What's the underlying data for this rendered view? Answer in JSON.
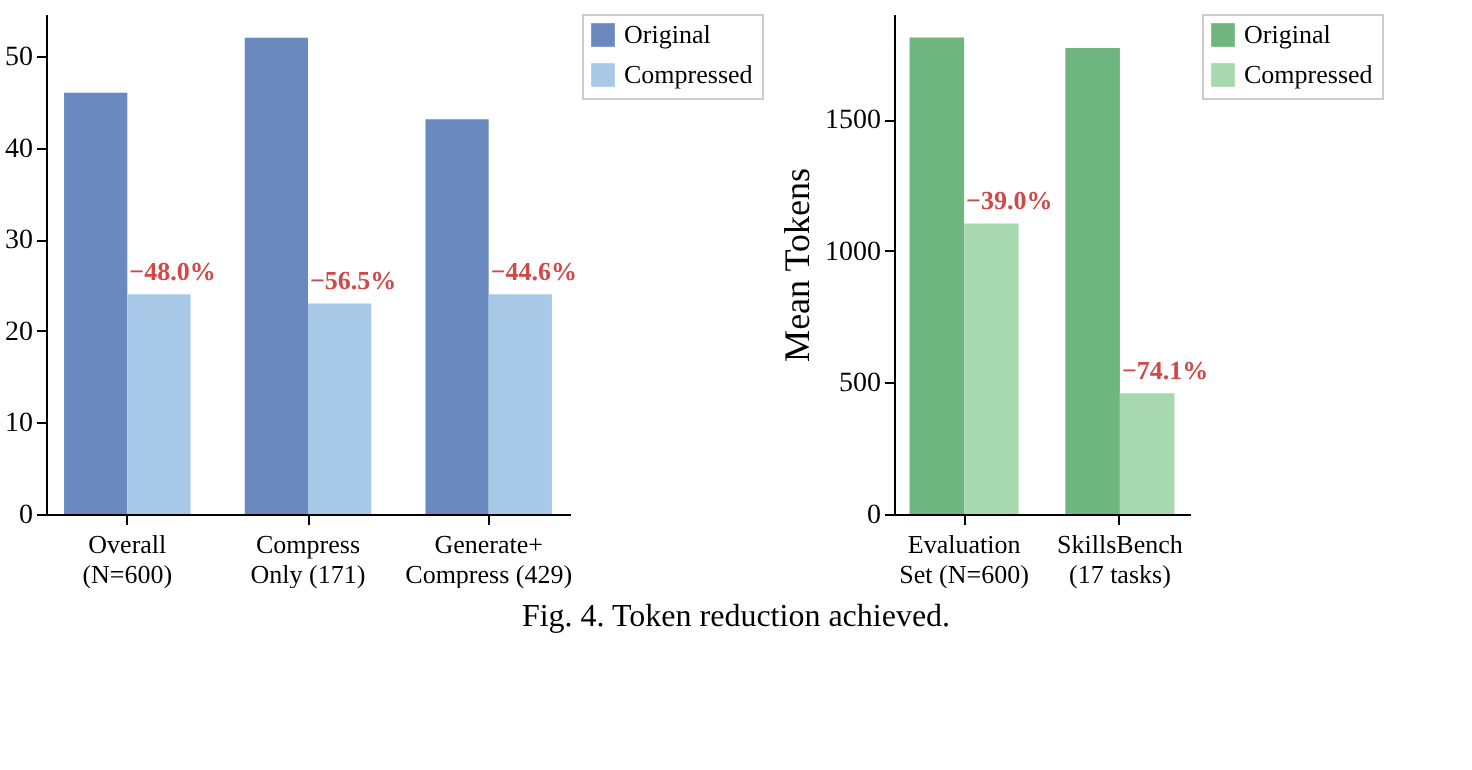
{
  "chart_data": [
    {
      "type": "bar",
      "categories": [
        "Overall\n(N=600)",
        "Compress\nOnly (171)",
        "Generate+\nCompress (429)"
      ],
      "series": [
        {
          "name": "Original",
          "color": "#6a89bf",
          "values": [
            46,
            52,
            43.1
          ]
        },
        {
          "name": "Compressed",
          "color": "#a8c8e8",
          "values": [
            24,
            23,
            24
          ]
        }
      ],
      "ylim": [
        0,
        54.6
      ],
      "yticks": [
        0,
        10,
        20,
        30,
        40,
        50
      ],
      "grid": false,
      "legend": "top right",
      "annotations": [
        {
          "text": "−48.0%",
          "x": "Overall\n(N=600)",
          "y": 24
        },
        {
          "text": "−56.5%",
          "x": "Compress\nOnly (171)",
          "y": 23
        },
        {
          "text": "−44.6%",
          "x": "Generate+\nCompress (429)",
          "y": 24
        }
      ]
    },
    {
      "type": "bar",
      "categories": [
        "Evaluation\nSet (N=600)",
        "SkillsBench\n(17 tasks)"
      ],
      "ylabel": "Mean Tokens",
      "series": [
        {
          "name": "Original",
          "color": "#6fb57f",
          "values": [
            1811,
            1771
          ]
        },
        {
          "name": "Compressed",
          "color": "#a8d8b0",
          "values": [
            1104,
            459
          ]
        }
      ],
      "ylim": [
        0,
        1900
      ],
      "yticks": [
        0,
        500,
        1000,
        1500
      ],
      "grid": false,
      "legend": "top right",
      "annotations": [
        {
          "text": "−39.0%",
          "x": "Evaluation\nSet (N=600)",
          "y": 1104
        },
        {
          "text": "−74.1%",
          "x": "SkillsBench\n(17 tasks)",
          "y": 459
        },
        "Fig. 4.  Token reduction achieved."
      ]
    }
  ]
}
